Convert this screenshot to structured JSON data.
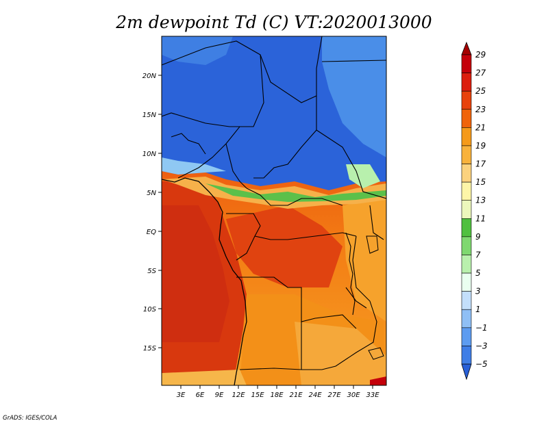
{
  "title": "2m dewpoint Td (C) VT:2020013000",
  "credit": "GrADS: IGES/COLA",
  "map": {
    "lon_labels": [
      "3E",
      "6E",
      "9E",
      "12E",
      "15E",
      "18E",
      "21E",
      "24E",
      "27E",
      "30E",
      "33E"
    ],
    "lat_labels": [
      "20N",
      "15N",
      "10N",
      "5N",
      "EQ",
      "5S",
      "10S",
      "15S"
    ]
  },
  "colorbar": {
    "labels": [
      "29",
      "27",
      "25",
      "23",
      "21",
      "19",
      "17",
      "15",
      "13",
      "11",
      "9",
      "7",
      "5",
      "3",
      "1",
      "−1",
      "−3",
      "−5"
    ],
    "colors": [
      "#a50000",
      "#c4000a",
      "#dc1e0e",
      "#e8420c",
      "#f0640a",
      "#f59a1a",
      "#f8b23c",
      "#fbd27e",
      "#fdf5a8",
      "#ecf7bc",
      "#50c040",
      "#7fd870",
      "#b9f0ad",
      "#eafff0",
      "#c3dffb",
      "#8fbff5",
      "#5d9cf0",
      "#3f7ee6",
      "#2860d8"
    ]
  }
}
